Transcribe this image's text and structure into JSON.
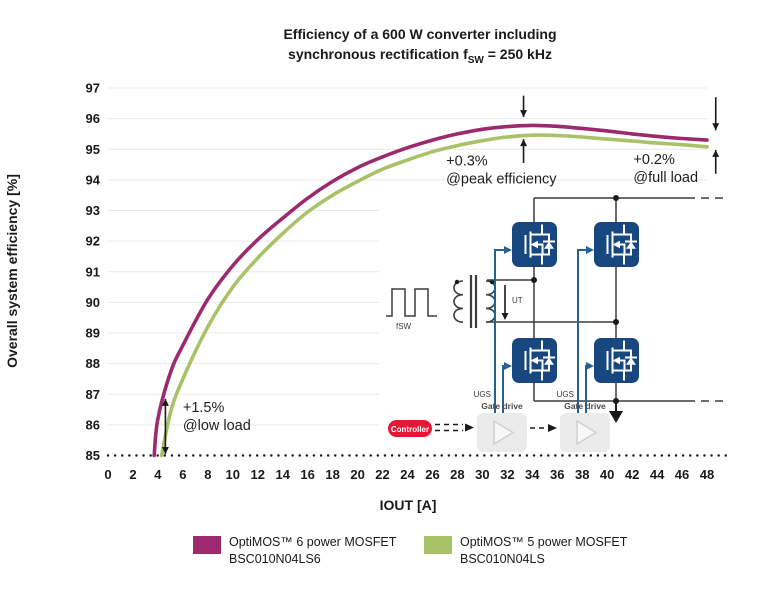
{
  "title": {
    "line1": "Efficiency of a 600 W converter including",
    "line2_pre": "synchronous rectification f",
    "line2_sub": "SW",
    "line2_post": " = 250 kHz"
  },
  "chart_data": {
    "type": "line",
    "xlabel": "IOUT [A]",
    "ylabel": "Overall system efficiency [%]",
    "xlim": [
      0,
      48
    ],
    "ylim": [
      85,
      97
    ],
    "xticks": [
      0,
      2,
      4,
      6,
      8,
      10,
      12,
      14,
      16,
      18,
      20,
      22,
      24,
      26,
      28,
      30,
      32,
      34,
      36,
      38,
      40,
      42,
      44,
      46,
      48
    ],
    "yticks": [
      85,
      86,
      87,
      88,
      89,
      90,
      91,
      92,
      93,
      94,
      95,
      96,
      97
    ],
    "grid": "horizontal solid light gray; y=85 is dotted black",
    "series": [
      {
        "name": "OptiMOS™ 6 power MOSFET BSC010N04LS6",
        "color": "#9c2a6d",
        "points": [
          [
            3.7,
            85.0
          ],
          [
            4,
            86.2
          ],
          [
            5,
            87.7
          ],
          [
            6,
            88.6
          ],
          [
            8,
            90.1
          ],
          [
            10,
            91.2
          ],
          [
            12,
            92.05
          ],
          [
            14,
            92.75
          ],
          [
            16,
            93.4
          ],
          [
            18,
            93.95
          ],
          [
            20,
            94.4
          ],
          [
            22,
            94.75
          ],
          [
            24,
            95.05
          ],
          [
            26,
            95.3
          ],
          [
            28,
            95.5
          ],
          [
            30,
            95.65
          ],
          [
            32,
            95.74
          ],
          [
            34,
            95.78
          ],
          [
            36,
            95.75
          ],
          [
            38,
            95.68
          ],
          [
            40,
            95.6
          ],
          [
            42,
            95.5
          ],
          [
            44,
            95.42
          ],
          [
            46,
            95.35
          ],
          [
            48,
            95.3
          ]
        ]
      },
      {
        "name": "OptiMOS™ 5 power MOSFET BSC010N04LS",
        "color": "#aac267",
        "points": [
          [
            4.3,
            85.0
          ],
          [
            5,
            86.4
          ],
          [
            6,
            87.5
          ],
          [
            8,
            89.2
          ],
          [
            10,
            90.5
          ],
          [
            12,
            91.45
          ],
          [
            14,
            92.25
          ],
          [
            16,
            92.95
          ],
          [
            18,
            93.5
          ],
          [
            20,
            93.95
          ],
          [
            22,
            94.35
          ],
          [
            24,
            94.65
          ],
          [
            26,
            94.92
          ],
          [
            28,
            95.12
          ],
          [
            30,
            95.28
          ],
          [
            32,
            95.4
          ],
          [
            34,
            95.46
          ],
          [
            36,
            95.45
          ],
          [
            38,
            95.4
          ],
          [
            40,
            95.33
          ],
          [
            42,
            95.27
          ],
          [
            44,
            95.2
          ],
          [
            46,
            95.15
          ],
          [
            48,
            95.08
          ]
        ]
      }
    ],
    "annotations": [
      {
        "id": "low-load",
        "lines": [
          "+1.5%",
          "@low load"
        ],
        "label_pos": [
          6.0,
          86.85
        ],
        "arrows": [
          {
            "x": 4.6,
            "from": 85.05,
            "to": 86.85,
            "heads": "both"
          }
        ]
      },
      {
        "id": "peak-efficiency",
        "lines": [
          "+0.3%",
          "@peak efficiency"
        ],
        "label_pos": [
          27.1,
          94.9
        ],
        "arrows": [
          {
            "x": 33.3,
            "from": 96.75,
            "to": 96.05,
            "heads": "end"
          },
          {
            "x": 33.3,
            "from": 94.55,
            "to": 95.33,
            "heads": "end"
          }
        ]
      },
      {
        "id": "full-load",
        "lines": [
          "+0.2%",
          "@full load"
        ],
        "label_pos": [
          42.1,
          94.95
        ],
        "arrows": [
          {
            "x": 48.7,
            "from": 96.7,
            "to": 95.62,
            "heads": "end"
          },
          {
            "x": 48.7,
            "from": 94.2,
            "to": 94.98,
            "heads": "end"
          }
        ]
      }
    ]
  },
  "legend": {
    "items": [
      {
        "color": "#9c2a6d",
        "line1": "OptiMOS™ 6 power MOSFET",
        "line2": "BSC010N04LS6"
      },
      {
        "color": "#aac267",
        "line1": "OptiMOS™ 5 power MOSFET",
        "line2": "BSC010N04LS"
      }
    ]
  },
  "circuit": {
    "controller": "Controller",
    "gate_drive_1": "Gate drive",
    "gate_drive_2": "Gate drive",
    "ugs_1": "UGS",
    "ugs_2": "UGS",
    "ut": "UT",
    "fsw": "fSW"
  }
}
